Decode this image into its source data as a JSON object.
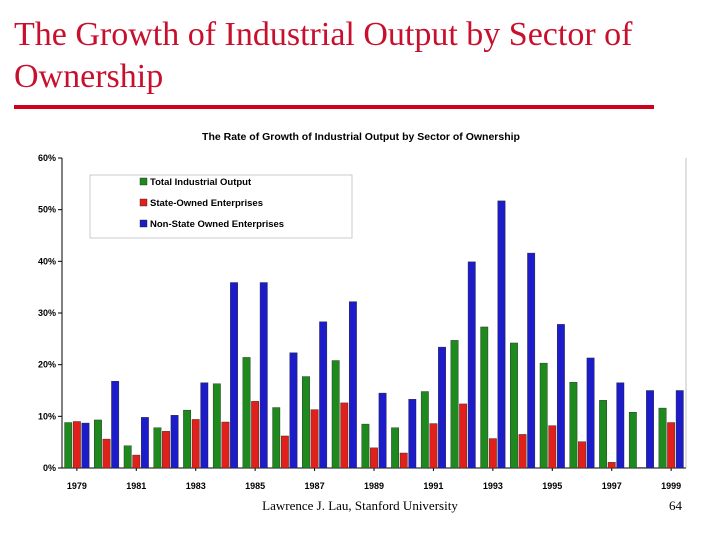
{
  "slide": {
    "title": "The Growth of Industrial Output by Sector of Ownership",
    "footer_credit": "Lawrence J. Lau, Stanford University",
    "page_number": "64"
  },
  "colors": {
    "title": "#c8102e",
    "rule": "#d0021b",
    "total": "#1e8a1e",
    "state": "#e0201b",
    "nonstate": "#1c1cc8"
  },
  "chart_data": {
    "type": "bar",
    "title": "The Rate of Growth of Industrial Output by Sector of Ownership",
    "categories": [
      "1979",
      "1980",
      "1981",
      "1982",
      "1983",
      "1984",
      "1985",
      "1986",
      "1987",
      "1988",
      "1989",
      "1990",
      "1991",
      "1992",
      "1993",
      "1994",
      "1995",
      "1996",
      "1997",
      "1998",
      "1999"
    ],
    "x_tick_labels": [
      "1979",
      "1981",
      "1983",
      "1985",
      "1987",
      "1989",
      "1991",
      "1993",
      "1995",
      "1997",
      "1999"
    ],
    "series": [
      {
        "name": "Total Industrial Output",
        "color_key": "total",
        "values": [
          8.8,
          9.3,
          4.3,
          7.8,
          11.2,
          16.3,
          21.4,
          11.7,
          17.7,
          20.8,
          8.5,
          7.8,
          14.8,
          24.7,
          27.3,
          24.2,
          20.3,
          16.6,
          13.1,
          10.8,
          11.6
        ]
      },
      {
        "name": "State-Owned Enterprises",
        "color_key": "state",
        "values": [
          9.0,
          5.6,
          2.5,
          7.1,
          9.4,
          8.9,
          12.9,
          6.2,
          11.3,
          12.6,
          3.9,
          2.9,
          8.6,
          12.4,
          5.7,
          6.5,
          8.2,
          5.1,
          1.1,
          0.1,
          8.8
        ]
      },
      {
        "name": "Non-State Owned Enterprises",
        "color_key": "nonstate",
        "values": [
          8.7,
          16.8,
          9.8,
          10.2,
          16.5,
          35.9,
          35.9,
          22.3,
          28.3,
          32.2,
          14.5,
          13.3,
          23.4,
          39.9,
          51.7,
          41.6,
          27.8,
          21.3,
          16.5,
          15.0,
          15.0
        ]
      }
    ],
    "y_tick_labels": [
      "0%",
      "10%",
      "20%",
      "30%",
      "40%",
      "50%",
      "60%"
    ],
    "ylim": [
      0,
      60
    ],
    "legend_position": "top-left",
    "grid": false
  }
}
